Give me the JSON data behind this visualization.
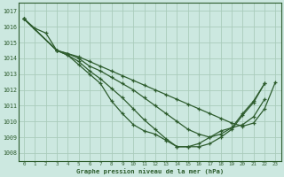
{
  "bg_color": "#cce8e0",
  "grid_color": "#aaccbb",
  "line_color": "#2d5c2d",
  "xlabel": "Graphe pression niveau de la mer (hPa)",
  "xlim": [
    -0.5,
    23.5
  ],
  "ylim": [
    1007.5,
    1017.5
  ],
  "yticks": [
    1008,
    1009,
    1010,
    1011,
    1012,
    1013,
    1014,
    1015,
    1016,
    1017
  ],
  "xticks": [
    0,
    1,
    2,
    3,
    4,
    5,
    6,
    7,
    8,
    9,
    10,
    11,
    12,
    13,
    14,
    15,
    16,
    17,
    18,
    19,
    20,
    21,
    22,
    23
  ],
  "series": [
    {
      "x": [
        0,
        1,
        2,
        3,
        4,
        5,
        6,
        7,
        8,
        9,
        10,
        11,
        12,
        13,
        14,
        15,
        16,
        17,
        18,
        19,
        20,
        21,
        22
      ],
      "y": [
        1016.5,
        1015.9,
        1015.6,
        1014.5,
        1014.2,
        1013.6,
        1013.0,
        1012.4,
        1011.3,
        1010.5,
        1009.8,
        1009.4,
        1009.2,
        1008.8,
        1008.4,
        1008.4,
        1008.4,
        1008.6,
        1009.0,
        1009.5,
        1010.4,
        1011.2,
        1012.4
      ]
    },
    {
      "x": [
        0,
        3,
        4,
        5,
        6,
        7,
        8,
        9,
        10,
        11,
        12,
        13,
        14,
        15,
        16,
        17,
        18,
        19,
        20,
        21,
        22
      ],
      "y": [
        1016.5,
        1014.5,
        1014.2,
        1013.8,
        1013.2,
        1012.7,
        1012.1,
        1011.5,
        1010.8,
        1010.1,
        1009.5,
        1008.9,
        1008.4,
        1008.4,
        1008.6,
        1009.0,
        1009.4,
        1009.6,
        1010.5,
        1011.3,
        1012.4
      ]
    },
    {
      "x": [
        0,
        3,
        4,
        5,
        6,
        7,
        8,
        9,
        10,
        11,
        12,
        13,
        14,
        15,
        16,
        17,
        18,
        19,
        20,
        21,
        22
      ],
      "y": [
        1016.5,
        1014.5,
        1014.3,
        1014.0,
        1013.5,
        1013.2,
        1012.8,
        1012.4,
        1012.0,
        1011.5,
        1011.0,
        1010.5,
        1010.0,
        1009.5,
        1009.2,
        1009.0,
        1009.2,
        1009.6,
        1009.8,
        1010.3,
        1011.4
      ]
    },
    {
      "x": [
        0,
        3,
        4,
        5,
        6,
        7,
        8,
        9,
        10,
        11,
        12,
        13,
        14,
        15,
        16,
        17,
        18,
        19,
        20,
        21,
        22,
        23
      ],
      "y": [
        1016.5,
        1014.5,
        1014.3,
        1014.1,
        1013.8,
        1013.5,
        1013.2,
        1012.9,
        1012.6,
        1012.3,
        1012.0,
        1011.7,
        1011.4,
        1011.1,
        1010.8,
        1010.5,
        1010.2,
        1009.9,
        1009.7,
        1009.9,
        1010.8,
        1012.5
      ]
    }
  ]
}
